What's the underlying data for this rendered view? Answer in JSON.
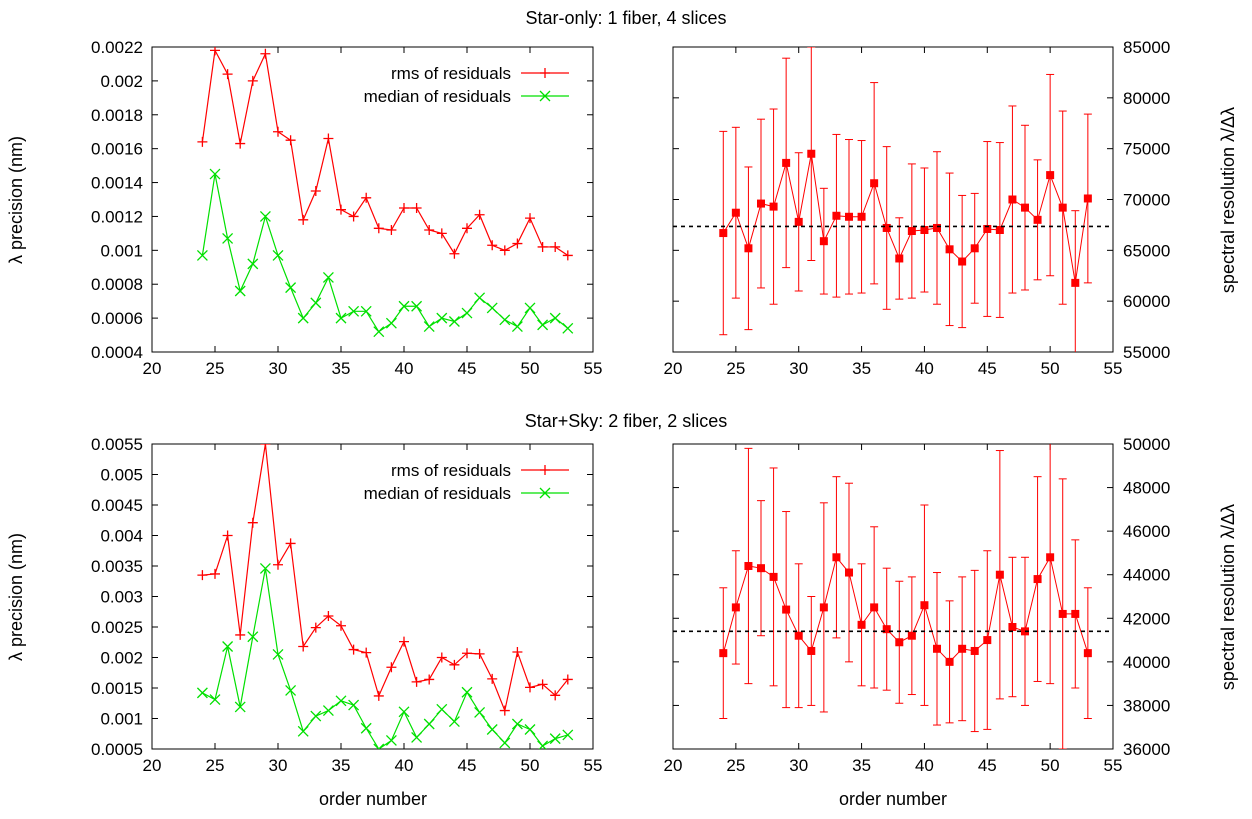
{
  "rows": [
    {
      "title": "Star-only: 1 fiber, 4 slices",
      "xlabel": "",
      "left": {
        "ylabel": "λ precision (nm)",
        "xlim": [
          20,
          55
        ],
        "ylim": [
          0.0004,
          0.0022
        ],
        "xticks": [
          "20",
          "25",
          "30",
          "35",
          "40",
          "45",
          "50",
          "55"
        ],
        "yticks": [
          "0.0004",
          "0.0006",
          "0.0008",
          "0.001",
          "0.0012",
          "0.0014",
          "0.0016",
          "0.0018",
          "0.002",
          "0.0022"
        ]
      },
      "right": {
        "ylabel": "spectral resolution λ/Δλ",
        "xlim": [
          20,
          55
        ],
        "ylim": [
          55000,
          85000
        ],
        "xticks": [
          "20",
          "25",
          "30",
          "35",
          "40",
          "45",
          "50",
          "55"
        ],
        "yticks": [
          "55000",
          "60000",
          "65000",
          "70000",
          "75000",
          "80000",
          "85000"
        ]
      }
    },
    {
      "title": "Star+Sky: 2 fiber, 2 slices",
      "xlabel": "order number",
      "left": {
        "ylabel": "λ precision (nm)",
        "xlim": [
          20,
          55
        ],
        "ylim": [
          0.0005,
          0.0055
        ],
        "xticks": [
          "20",
          "25",
          "30",
          "35",
          "40",
          "45",
          "50",
          "55"
        ],
        "yticks": [
          "0.0005",
          "0.001",
          "0.0015",
          "0.002",
          "0.0025",
          "0.003",
          "0.0035",
          "0.004",
          "0.0045",
          "0.005",
          "0.0055"
        ]
      },
      "right": {
        "ylabel": "spectral resolution λ/Δλ",
        "xlim": [
          20,
          55
        ],
        "ylim": [
          36000,
          50000
        ],
        "xticks": [
          "20",
          "25",
          "30",
          "35",
          "40",
          "45",
          "50",
          "55"
        ],
        "yticks": [
          "36000",
          "38000",
          "40000",
          "42000",
          "44000",
          "46000",
          "48000",
          "50000"
        ]
      }
    }
  ],
  "colors": {
    "rms": "#ff0000",
    "median": "#00e000",
    "resolution": "#ff0000",
    "mean_line": "#000000"
  },
  "chart_data": [
    {
      "type": "line",
      "title": "Star-only: 1 fiber, 4 slices",
      "xlabel": "",
      "ylabel": "λ precision (nm)",
      "xlim": [
        20,
        55
      ],
      "ylim": [
        0.0004,
        0.0022
      ],
      "grid": false,
      "legend": "top-right",
      "x": [
        24,
        25,
        26,
        27,
        28,
        29,
        30,
        31,
        32,
        33,
        34,
        35,
        36,
        37,
        38,
        39,
        40,
        41,
        42,
        43,
        44,
        45,
        46,
        47,
        48,
        49,
        50,
        51,
        52,
        53
      ],
      "series": [
        {
          "name": "rms of residuals",
          "color": "#ff0000",
          "marker": "plus",
          "values": [
            0.00164,
            0.00218,
            0.00204,
            0.00163,
            0.002,
            0.00216,
            0.0017,
            0.00165,
            0.00118,
            0.00135,
            0.00166,
            0.00124,
            0.0012,
            0.00131,
            0.00113,
            0.00112,
            0.00125,
            0.00125,
            0.00112,
            0.0011,
            0.00098,
            0.00113,
            0.00121,
            0.00103,
            0.001,
            0.00104,
            0.00119,
            0.00102,
            0.00102,
            0.00097
          ]
        },
        {
          "name": "median of residuals",
          "color": "#00e000",
          "marker": "cross",
          "values": [
            0.00097,
            0.00145,
            0.00107,
            0.00076,
            0.00092,
            0.0012,
            0.00097,
            0.00078,
            0.0006,
            0.00069,
            0.00084,
            0.0006,
            0.00064,
            0.00064,
            0.00052,
            0.00057,
            0.00067,
            0.00067,
            0.00055,
            0.0006,
            0.00058,
            0.00063,
            0.00072,
            0.00066,
            0.00059,
            0.00055,
            0.00066,
            0.00056,
            0.0006,
            0.00054
          ]
        }
      ]
    },
    {
      "type": "scatter",
      "title": "",
      "xlabel": "",
      "ylabel": "spectral resolution λ/Δλ",
      "xlim": [
        20,
        55
      ],
      "ylim": [
        55000,
        85000
      ],
      "grid": false,
      "x": [
        24,
        25,
        26,
        27,
        28,
        29,
        30,
        31,
        32,
        33,
        34,
        35,
        36,
        37,
        38,
        39,
        40,
        41,
        42,
        43,
        44,
        45,
        46,
        47,
        48,
        49,
        50,
        51,
        52,
        53
      ],
      "values": [
        66700,
        68700,
        65200,
        69600,
        69300,
        73600,
        67800,
        74500,
        65900,
        68400,
        68300,
        68300,
        71600,
        67200,
        64200,
        66900,
        67000,
        67200,
        65100,
        63900,
        65200,
        67100,
        67000,
        70000,
        69200,
        68000,
        72400,
        69200,
        61800,
        70100
      ],
      "errors": [
        10000,
        8400,
        8000,
        8300,
        9600,
        10300,
        6800,
        10500,
        5200,
        8000,
        7600,
        7500,
        9900,
        8000,
        4000,
        6600,
        6100,
        7500,
        7500,
        6500,
        5400,
        8600,
        8600,
        9200,
        8100,
        5900,
        9900,
        9500,
        7100,
        8300
      ],
      "reference_line": 67350
    },
    {
      "type": "line",
      "title": "Star+Sky: 2 fiber, 2 slices",
      "xlabel": "order number",
      "ylabel": "λ precision (nm)",
      "xlim": [
        20,
        55
      ],
      "ylim": [
        0.0005,
        0.0055
      ],
      "grid": false,
      "legend": "top-right",
      "x": [
        24,
        25,
        26,
        27,
        28,
        29,
        30,
        31,
        32,
        33,
        34,
        35,
        36,
        37,
        38,
        39,
        40,
        41,
        42,
        43,
        44,
        45,
        46,
        47,
        48,
        49,
        50,
        51,
        52,
        53
      ],
      "series": [
        {
          "name": "rms of residuals",
          "color": "#ff0000",
          "marker": "plus",
          "values": [
            0.00335,
            0.00337,
            0.004,
            0.00237,
            0.00421,
            0.0055,
            0.00352,
            0.00387,
            0.00218,
            0.00249,
            0.00268,
            0.00252,
            0.00213,
            0.00208,
            0.00137,
            0.00184,
            0.00226,
            0.0016,
            0.00164,
            0.002,
            0.00188,
            0.00207,
            0.00206,
            0.00165,
            0.00113,
            0.00209,
            0.00151,
            0.00156,
            0.00138,
            0.00164
          ]
        },
        {
          "name": "median of residuals",
          "color": "#00e000",
          "marker": "cross",
          "values": [
            0.00142,
            0.00131,
            0.00218,
            0.00119,
            0.00234,
            0.00346,
            0.00205,
            0.00146,
            0.00079,
            0.00104,
            0.00113,
            0.00129,
            0.00122,
            0.00084,
            0.0005,
            0.00064,
            0.00111,
            0.00069,
            0.00091,
            0.00115,
            0.00095,
            0.00143,
            0.0011,
            0.00082,
            0.0006,
            0.00091,
            0.00082,
            0.00055,
            0.00067,
            0.00073
          ]
        }
      ]
    },
    {
      "type": "scatter",
      "title": "",
      "xlabel": "order number",
      "ylabel": "spectral resolution λ/Δλ",
      "xlim": [
        20,
        55
      ],
      "ylim": [
        36000,
        50000
      ],
      "grid": false,
      "x": [
        24,
        25,
        26,
        27,
        28,
        29,
        30,
        31,
        32,
        33,
        34,
        35,
        36,
        37,
        38,
        39,
        40,
        41,
        42,
        43,
        44,
        45,
        46,
        47,
        48,
        49,
        50,
        51,
        52,
        53
      ],
      "values": [
        40400,
        42500,
        44400,
        44300,
        43900,
        42400,
        41200,
        40500,
        42500,
        44800,
        44100,
        41700,
        42500,
        41500,
        40900,
        41200,
        42600,
        40600,
        40000,
        40600,
        40500,
        41000,
        44000,
        41600,
        41400,
        43800,
        44800,
        42200,
        42200,
        40400
      ],
      "errors": [
        3000,
        2600,
        5400,
        3100,
        5000,
        4500,
        3300,
        2500,
        4800,
        3700,
        4100,
        2800,
        3700,
        2800,
        2800,
        2700,
        4600,
        3500,
        2800,
        3300,
        3700,
        4100,
        5700,
        3200,
        3400,
        4700,
        5800,
        6200,
        3400,
        3000
      ],
      "reference_line": 41400
    }
  ]
}
